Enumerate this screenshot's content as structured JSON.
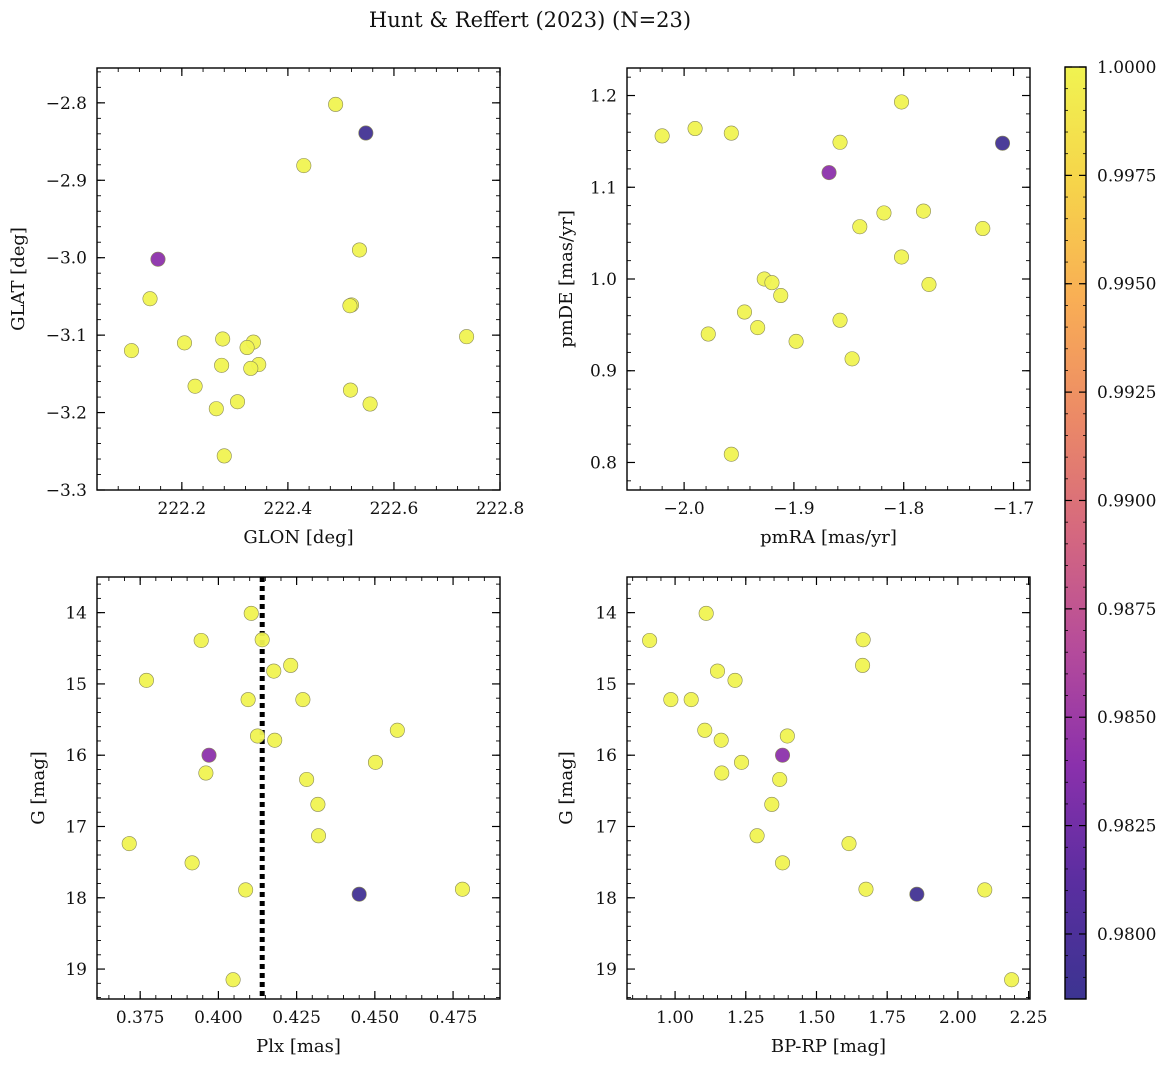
{
  "figure": {
    "title": "Hunt & Reffert (2023) (N=23)"
  },
  "colorbar": {
    "range": [
      0.9785,
      1.0
    ],
    "ticks": [
      "0.9800",
      "0.9825",
      "0.9850",
      "0.9875",
      "0.9900",
      "0.9925",
      "0.9950",
      "0.9975",
      "1.0000"
    ],
    "colormap_stops": [
      "#3c3491",
      "#5a2ea0",
      "#8a30ac",
      "#b54b9b",
      "#d5687f",
      "#ec8a66",
      "#f9ae55",
      "#f6d44a",
      "#f0f351"
    ]
  },
  "chart_data": [
    {
      "type": "scatter",
      "xlabel": "GLON [deg]",
      "ylabel": "GLAT [deg]",
      "xlim": [
        222.04,
        222.8
      ],
      "ylim": [
        -3.3,
        -2.755
      ],
      "y_inverted": false,
      "xticks": [
        222.2,
        222.4,
        222.6,
        222.8
      ],
      "xtick_labels": [
        "222.2",
        "222.4",
        "222.6",
        "222.8"
      ],
      "yticks": [
        -2.8,
        -2.9,
        -3.0,
        -3.1,
        -3.2,
        -3.3
      ],
      "ytick_labels": [
        "−2.8",
        "−2.9",
        "−3.0",
        "−3.1",
        "−3.2",
        "−3.3"
      ],
      "vline": null,
      "points": [
        {
          "x": 222.49,
          "y": -2.802,
          "c": 1.0
        },
        {
          "x": 222.547,
          "y": -2.839,
          "c": 0.979
        },
        {
          "x": 222.43,
          "y": -2.881,
          "c": 1.0
        },
        {
          "x": 222.155,
          "y": -3.002,
          "c": 0.984
        },
        {
          "x": 222.535,
          "y": -2.99,
          "c": 1.0
        },
        {
          "x": 222.14,
          "y": -3.053,
          "c": 1.0
        },
        {
          "x": 222.52,
          "y": -3.061,
          "c": 1.0
        },
        {
          "x": 222.517,
          "y": -3.062,
          "c": 1.0
        },
        {
          "x": 222.105,
          "y": -3.12,
          "c": 1.0
        },
        {
          "x": 222.205,
          "y": -3.11,
          "c": 1.0
        },
        {
          "x": 222.277,
          "y": -3.105,
          "c": 1.0
        },
        {
          "x": 222.335,
          "y": -3.109,
          "c": 1.0
        },
        {
          "x": 222.323,
          "y": -3.116,
          "c": 1.0
        },
        {
          "x": 222.737,
          "y": -3.102,
          "c": 1.0
        },
        {
          "x": 222.275,
          "y": -3.139,
          "c": 1.0
        },
        {
          "x": 222.345,
          "y": -3.138,
          "c": 1.0
        },
        {
          "x": 222.33,
          "y": -3.143,
          "c": 1.0
        },
        {
          "x": 222.225,
          "y": -3.166,
          "c": 1.0
        },
        {
          "x": 222.518,
          "y": -3.171,
          "c": 1.0
        },
        {
          "x": 222.305,
          "y": -3.186,
          "c": 1.0
        },
        {
          "x": 222.555,
          "y": -3.189,
          "c": 1.0
        },
        {
          "x": 222.265,
          "y": -3.195,
          "c": 1.0
        },
        {
          "x": 222.28,
          "y": -3.256,
          "c": 1.0
        }
      ]
    },
    {
      "type": "scatter",
      "xlabel": "pmRA [mas/yr]",
      "ylabel": "pmDE [mas/yr]",
      "xlim": [
        -2.052,
        -1.685
      ],
      "ylim": [
        0.77,
        1.23
      ],
      "y_inverted": false,
      "xticks": [
        -2.0,
        -1.9,
        -1.8,
        -1.7
      ],
      "xtick_labels": [
        "−2.0",
        "−1.9",
        "−1.8",
        "−1.7"
      ],
      "yticks": [
        0.8,
        0.9,
        1.0,
        1.1,
        1.2
      ],
      "ytick_labels": [
        "0.8",
        "0.9",
        "1.0",
        "1.1",
        "1.2"
      ],
      "vline": null,
      "points": [
        {
          "x": -1.802,
          "y": 1.193,
          "c": 1.0
        },
        {
          "x": -1.99,
          "y": 1.164,
          "c": 1.0
        },
        {
          "x": -1.957,
          "y": 1.159,
          "c": 1.0
        },
        {
          "x": -2.02,
          "y": 1.156,
          "c": 1.0
        },
        {
          "x": -1.858,
          "y": 1.149,
          "c": 1.0
        },
        {
          "x": -1.71,
          "y": 1.148,
          "c": 0.979
        },
        {
          "x": -1.868,
          "y": 1.116,
          "c": 0.984
        },
        {
          "x": -1.782,
          "y": 1.074,
          "c": 1.0
        },
        {
          "x": -1.818,
          "y": 1.072,
          "c": 1.0
        },
        {
          "x": -1.84,
          "y": 1.057,
          "c": 1.0
        },
        {
          "x": -1.728,
          "y": 1.055,
          "c": 1.0
        },
        {
          "x": -1.802,
          "y": 1.024,
          "c": 1.0
        },
        {
          "x": -1.927,
          "y": 1.0,
          "c": 1.0
        },
        {
          "x": -1.92,
          "y": 0.996,
          "c": 1.0
        },
        {
          "x": -1.777,
          "y": 0.994,
          "c": 1.0
        },
        {
          "x": -1.912,
          "y": 0.982,
          "c": 1.0
        },
        {
          "x": -1.945,
          "y": 0.964,
          "c": 1.0
        },
        {
          "x": -1.858,
          "y": 0.955,
          "c": 1.0
        },
        {
          "x": -1.933,
          "y": 0.947,
          "c": 1.0
        },
        {
          "x": -1.978,
          "y": 0.94,
          "c": 1.0
        },
        {
          "x": -1.898,
          "y": 0.932,
          "c": 1.0
        },
        {
          "x": -1.847,
          "y": 0.913,
          "c": 1.0
        },
        {
          "x": -1.957,
          "y": 0.809,
          "c": 1.0
        }
      ]
    },
    {
      "type": "scatter",
      "xlabel": "Plx [mas]",
      "ylabel": "G [mag]",
      "xlim": [
        0.3612,
        0.49
      ],
      "ylim": [
        13.5,
        19.42
      ],
      "y_inverted": true,
      "xticks": [
        0.375,
        0.4,
        0.425,
        0.45,
        0.475
      ],
      "xtick_labels": [
        "0.375",
        "0.400",
        "0.425",
        "0.450",
        "0.475"
      ],
      "yticks": [
        14,
        15,
        16,
        17,
        18,
        19
      ],
      "ytick_labels": [
        "14",
        "15",
        "16",
        "17",
        "18",
        "19"
      ],
      "vline": 0.414,
      "points": [
        {
          "x": 0.4105,
          "y": 14.01,
          "c": 1.0
        },
        {
          "x": 0.3945,
          "y": 14.39,
          "c": 1.0
        },
        {
          "x": 0.414,
          "y": 14.38,
          "c": 1.0
        },
        {
          "x": 0.4231,
          "y": 14.74,
          "c": 1.0
        },
        {
          "x": 0.4177,
          "y": 14.82,
          "c": 1.0
        },
        {
          "x": 0.377,
          "y": 14.95,
          "c": 1.0
        },
        {
          "x": 0.4095,
          "y": 15.22,
          "c": 1.0
        },
        {
          "x": 0.427,
          "y": 15.22,
          "c": 1.0
        },
        {
          "x": 0.4572,
          "y": 15.65,
          "c": 1.0
        },
        {
          "x": 0.4125,
          "y": 15.73,
          "c": 1.0
        },
        {
          "x": 0.418,
          "y": 15.79,
          "c": 1.0
        },
        {
          "x": 0.397,
          "y": 16.0,
          "c": 0.984
        },
        {
          "x": 0.4502,
          "y": 16.1,
          "c": 1.0
        },
        {
          "x": 0.396,
          "y": 16.25,
          "c": 1.0
        },
        {
          "x": 0.4282,
          "y": 16.34,
          "c": 1.0
        },
        {
          "x": 0.4318,
          "y": 16.69,
          "c": 1.0
        },
        {
          "x": 0.432,
          "y": 17.13,
          "c": 1.0
        },
        {
          "x": 0.3715,
          "y": 17.24,
          "c": 1.0
        },
        {
          "x": 0.3916,
          "y": 17.51,
          "c": 1.0
        },
        {
          "x": 0.478,
          "y": 17.88,
          "c": 1.0
        },
        {
          "x": 0.4087,
          "y": 17.89,
          "c": 1.0
        },
        {
          "x": 0.445,
          "y": 17.95,
          "c": 0.979
        },
        {
          "x": 0.4047,
          "y": 19.15,
          "c": 1.0
        }
      ]
    },
    {
      "type": "scatter",
      "xlabel": "BP-RP [mag]",
      "ylabel": "G [mag]",
      "xlim": [
        0.83,
        2.255
      ],
      "ylim": [
        13.5,
        19.42
      ],
      "y_inverted": true,
      "xticks": [
        1.0,
        1.25,
        1.5,
        1.75,
        2.0,
        2.25
      ],
      "xtick_labels": [
        "1.00",
        "1.25",
        "1.50",
        "1.75",
        "2.00",
        "2.25"
      ],
      "yticks": [
        14,
        15,
        16,
        17,
        18,
        19
      ],
      "ytick_labels": [
        "14",
        "15",
        "16",
        "17",
        "18",
        "19"
      ],
      "vline": null,
      "points": [
        {
          "x": 1.11,
          "y": 14.01,
          "c": 1.0
        },
        {
          "x": 0.91,
          "y": 14.39,
          "c": 1.0
        },
        {
          "x": 1.665,
          "y": 14.38,
          "c": 1.0
        },
        {
          "x": 1.663,
          "y": 14.74,
          "c": 1.0
        },
        {
          "x": 1.15,
          "y": 14.82,
          "c": 1.0
        },
        {
          "x": 1.212,
          "y": 14.95,
          "c": 1.0
        },
        {
          "x": 0.985,
          "y": 15.22,
          "c": 1.0
        },
        {
          "x": 1.057,
          "y": 15.22,
          "c": 1.0
        },
        {
          "x": 1.105,
          "y": 15.65,
          "c": 1.0
        },
        {
          "x": 1.397,
          "y": 15.73,
          "c": 1.0
        },
        {
          "x": 1.163,
          "y": 15.79,
          "c": 1.0
        },
        {
          "x": 1.38,
          "y": 16.0,
          "c": 0.984
        },
        {
          "x": 1.235,
          "y": 16.1,
          "c": 1.0
        },
        {
          "x": 1.165,
          "y": 16.25,
          "c": 1.0
        },
        {
          "x": 1.37,
          "y": 16.34,
          "c": 1.0
        },
        {
          "x": 1.342,
          "y": 16.69,
          "c": 1.0
        },
        {
          "x": 1.29,
          "y": 17.13,
          "c": 1.0
        },
        {
          "x": 1.615,
          "y": 17.24,
          "c": 1.0
        },
        {
          "x": 1.38,
          "y": 17.51,
          "c": 1.0
        },
        {
          "x": 1.675,
          "y": 17.88,
          "c": 1.0
        },
        {
          "x": 2.095,
          "y": 17.89,
          "c": 1.0
        },
        {
          "x": 1.855,
          "y": 17.95,
          "c": 0.979
        },
        {
          "x": 2.19,
          "y": 19.15,
          "c": 1.0
        }
      ]
    }
  ]
}
